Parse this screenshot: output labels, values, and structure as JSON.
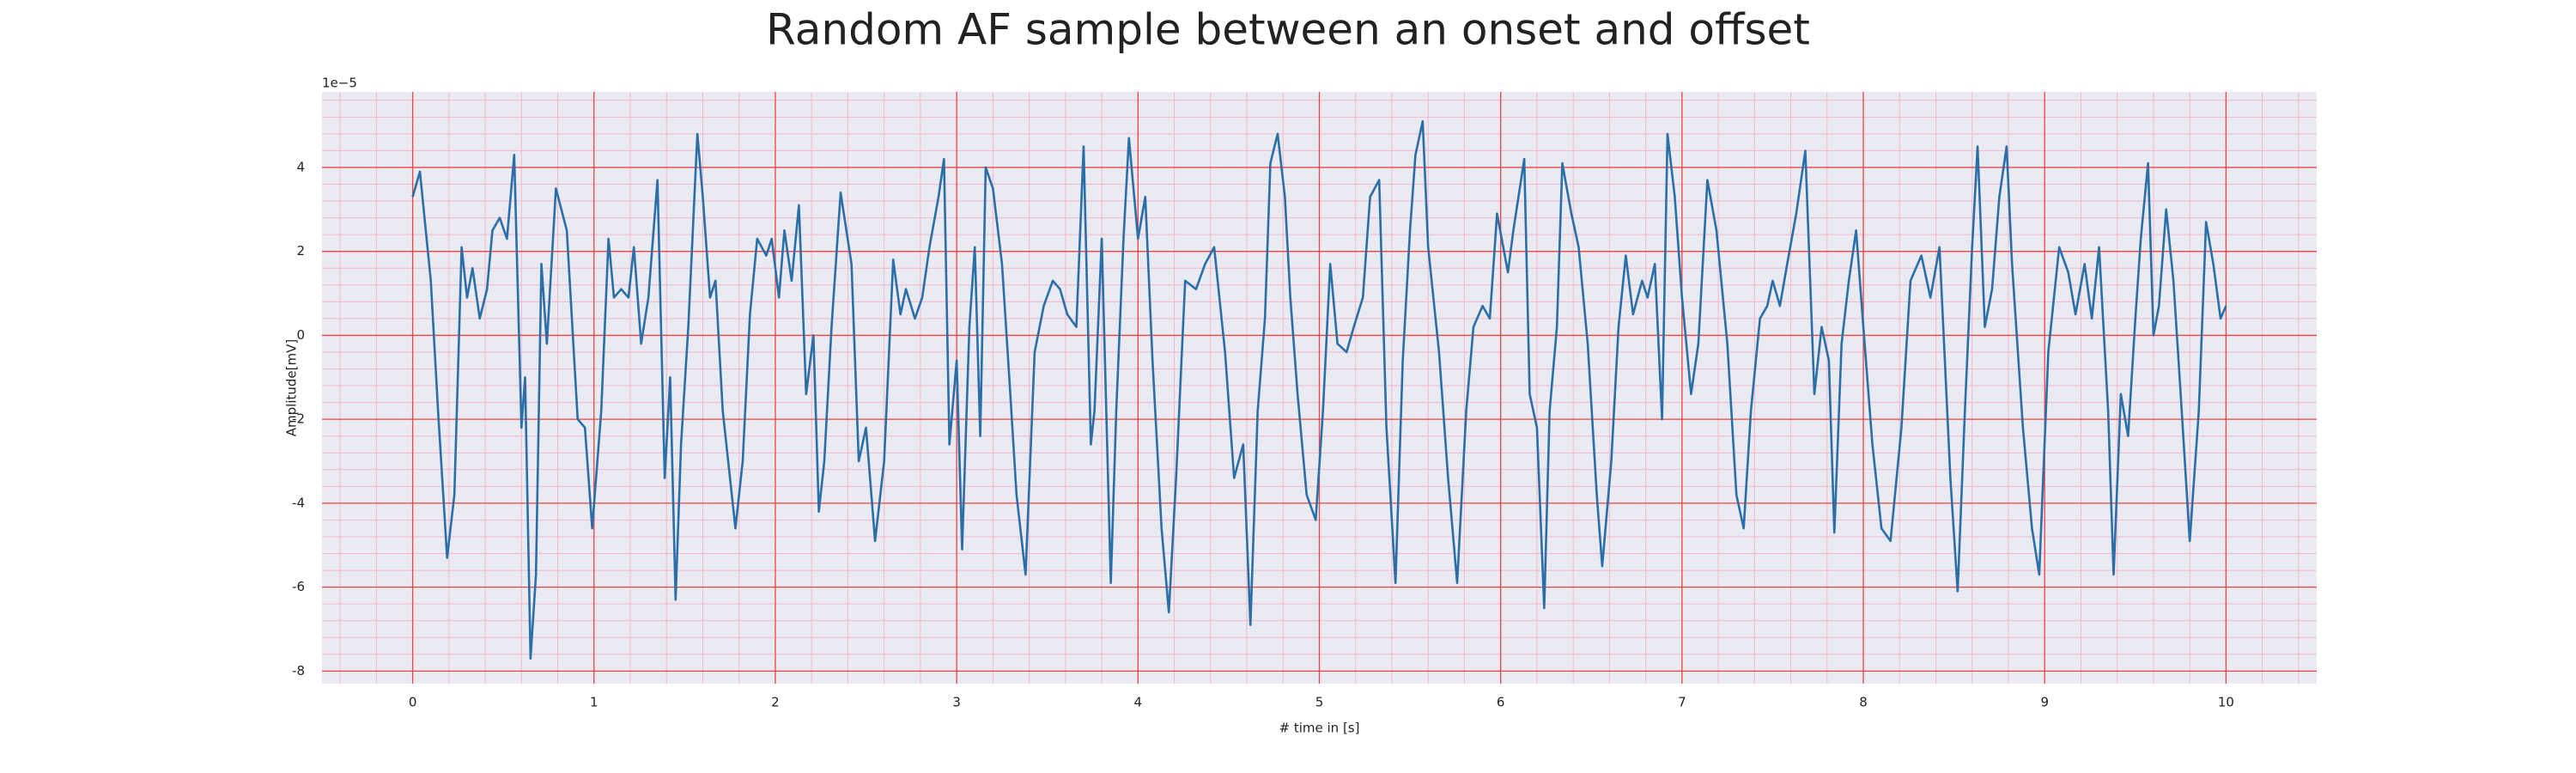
{
  "chart_data": {
    "type": "line",
    "title": "Random AF sample between an onset and offset",
    "x_label": "# time in [s]",
    "y_label": "Amplitude[mV]",
    "y_offset_label": "1e−5",
    "color": "#2a6fa8",
    "grid": true,
    "minor_grid": true,
    "xlim": [
      -0.5,
      10.5
    ],
    "ylim": [
      -8.3,
      5.8
    ],
    "xticks": [
      0,
      1,
      2,
      3,
      4,
      5,
      6,
      7,
      8,
      9,
      10
    ],
    "yticks": [
      -8,
      -6,
      -4,
      -2,
      0,
      2,
      4
    ],
    "x": [
      0,
      0.04,
      0.1,
      0.14,
      0.19,
      0.23,
      0.27,
      0.3,
      0.33,
      0.37,
      0.41,
      0.44,
      0.48,
      0.52,
      0.56,
      0.6,
      0.62,
      0.65,
      0.68,
      0.71,
      0.74,
      0.79,
      0.85,
      0.91,
      0.95,
      0.99,
      1.04,
      1.08,
      1.11,
      1.15,
      1.19,
      1.22,
      1.26,
      1.3,
      1.35,
      1.39,
      1.42,
      1.45,
      1.48,
      1.52,
      1.57,
      1.6,
      1.64,
      1.67,
      1.71,
      1.78,
      1.82,
      1.86,
      1.9,
      1.95,
      1.98,
      2.02,
      2.05,
      2.09,
      2.13,
      2.17,
      2.21,
      2.24,
      2.27,
      2.31,
      2.36,
      2.42,
      2.46,
      2.5,
      2.55,
      2.6,
      2.65,
      2.69,
      2.72,
      2.77,
      2.81,
      2.85,
      2.9,
      2.93,
      2.96,
      3.0,
      3.03,
      3.07,
      3.1,
      3.13,
      3.16,
      3.2,
      3.25,
      3.29,
      3.33,
      3.38,
      3.43,
      3.48,
      3.53,
      3.57,
      3.61,
      3.66,
      3.7,
      3.74,
      3.76,
      3.8,
      3.85,
      3.88,
      3.92,
      3.95,
      4.0,
      4.04,
      4.08,
      4.13,
      4.17,
      4.21,
      4.26,
      4.32,
      4.37,
      4.42,
      4.48,
      4.53,
      4.58,
      4.62,
      4.66,
      4.7,
      4.73,
      4.77,
      4.81,
      4.84,
      4.88,
      4.93,
      4.98,
      5.02,
      5.06,
      5.1,
      5.15,
      5.19,
      5.24,
      5.28,
      5.33,
      5.37,
      5.42,
      5.46,
      5.5,
      5.53,
      5.57,
      5.6,
      5.66,
      5.71,
      5.76,
      5.81,
      5.85,
      5.9,
      5.94,
      5.98,
      6.04,
      6.07,
      6.13,
      6.16,
      6.2,
      6.24,
      6.27,
      6.31,
      6.34,
      6.39,
      6.43,
      6.48,
      6.53,
      6.56,
      6.61,
      6.65,
      6.69,
      6.73,
      6.78,
      6.81,
      6.85,
      6.89,
      6.92,
      6.96,
      7.0,
      7.05,
      7.09,
      7.14,
      7.19,
      7.25,
      7.3,
      7.34,
      7.38,
      7.43,
      7.47,
      7.5,
      7.54,
      7.58,
      7.63,
      7.68,
      7.73,
      7.77,
      7.81,
      7.84,
      7.88,
      7.92,
      7.96,
      8.0,
      8.05,
      8.1,
      8.15,
      8.21,
      8.26,
      8.32,
      8.37,
      8.42,
      8.48,
      8.52,
      8.56,
      8.6,
      8.63,
      8.67,
      8.71,
      8.75,
      8.79,
      8.82,
      8.88,
      8.93,
      8.97,
      9.02,
      9.08,
      9.13,
      9.17,
      9.22,
      9.26,
      9.3,
      9.35,
      9.38,
      9.42,
      9.46,
      9.5,
      9.53,
      9.57,
      9.6,
      9.63,
      9.67,
      9.71,
      9.75,
      9.8,
      9.85,
      9.89,
      9.93,
      9.97,
      10.0
    ],
    "values": [
      3.3,
      3.9,
      1.3,
      -1.8,
      -5.3,
      -3.8,
      2.1,
      0.9,
      1.6,
      0.4,
      1.1,
      2.5,
      2.8,
      2.3,
      4.3,
      -2.2,
      -1.0,
      -7.7,
      -5.7,
      1.7,
      -0.2,
      3.5,
      2.5,
      -2.0,
      -2.2,
      -4.6,
      -1.8,
      2.3,
      0.9,
      1.1,
      0.9,
      2.1,
      -0.2,
      0.9,
      3.7,
      -3.4,
      -1.0,
      -6.3,
      -2.6,
      0.2,
      4.8,
      3.3,
      0.9,
      1.3,
      -1.8,
      -4.6,
      -3.0,
      0.5,
      2.3,
      1.9,
      2.3,
      0.9,
      2.5,
      1.3,
      3.1,
      -1.4,
      0.0,
      -4.2,
      -3.0,
      0.2,
      3.4,
      1.7,
      -3.0,
      -2.2,
      -4.9,
      -3.0,
      1.8,
      0.5,
      1.1,
      0.4,
      0.9,
      2.1,
      3.3,
      4.2,
      -2.6,
      -0.6,
      -5.1,
      0.2,
      2.1,
      -2.4,
      4.0,
      3.5,
      1.7,
      -1.0,
      -3.8,
      -5.7,
      -0.4,
      0.7,
      1.3,
      1.1,
      0.5,
      0.2,
      4.5,
      -2.6,
      -1.8,
      2.3,
      -5.9,
      -1.8,
      2.3,
      4.7,
      2.3,
      3.3,
      -0.6,
      -4.6,
      -6.6,
      -3.4,
      1.3,
      1.1,
      1.7,
      2.1,
      -0.4,
      -3.4,
      -2.6,
      -6.9,
      -1.8,
      0.4,
      4.1,
      4.8,
      3.3,
      0.9,
      -1.4,
      -3.8,
      -4.4,
      -1.8,
      1.7,
      -0.2,
      -0.4,
      0.2,
      0.9,
      3.3,
      3.7,
      -2.2,
      -5.9,
      -0.6,
      2.5,
      4.3,
      5.1,
      2.1,
      -0.4,
      -3.4,
      -5.9,
      -1.8,
      0.2,
      0.7,
      0.4,
      2.9,
      1.5,
      2.5,
      4.2,
      -1.4,
      -2.2,
      -6.5,
      -1.8,
      0.2,
      4.1,
      2.9,
      2.1,
      -0.2,
      -3.8,
      -5.5,
      -3.0,
      0.2,
      1.9,
      0.5,
      1.3,
      0.9,
      1.7,
      -2.0,
      4.8,
      3.3,
      0.9,
      -1.4,
      -0.2,
      3.7,
      2.5,
      -0.2,
      -3.8,
      -4.6,
      -1.8,
      0.4,
      0.7,
      1.3,
      0.7,
      1.7,
      2.9,
      4.4,
      -1.4,
      0.2,
      -0.6,
      -4.7,
      -0.2,
      1.3,
      2.5,
      0.2,
      -2.6,
      -4.6,
      -4.9,
      -2.2,
      1.3,
      1.9,
      0.9,
      2.1,
      -3.4,
      -6.1,
      -1.8,
      2.1,
      4.5,
      0.2,
      1.1,
      3.3,
      4.5,
      1.7,
      -2.2,
      -4.6,
      -5.7,
      -0.4,
      2.1,
      1.5,
      0.5,
      1.7,
      0.4,
      2.1,
      -1.8,
      -5.7,
      -1.4,
      -2.4,
      0.4,
      2.3,
      4.1,
      0.0,
      0.7,
      3.0,
      1.3,
      -1.4,
      -4.9,
      -1.8,
      2.7,
      1.7,
      0.4,
      0.7
    ]
  }
}
